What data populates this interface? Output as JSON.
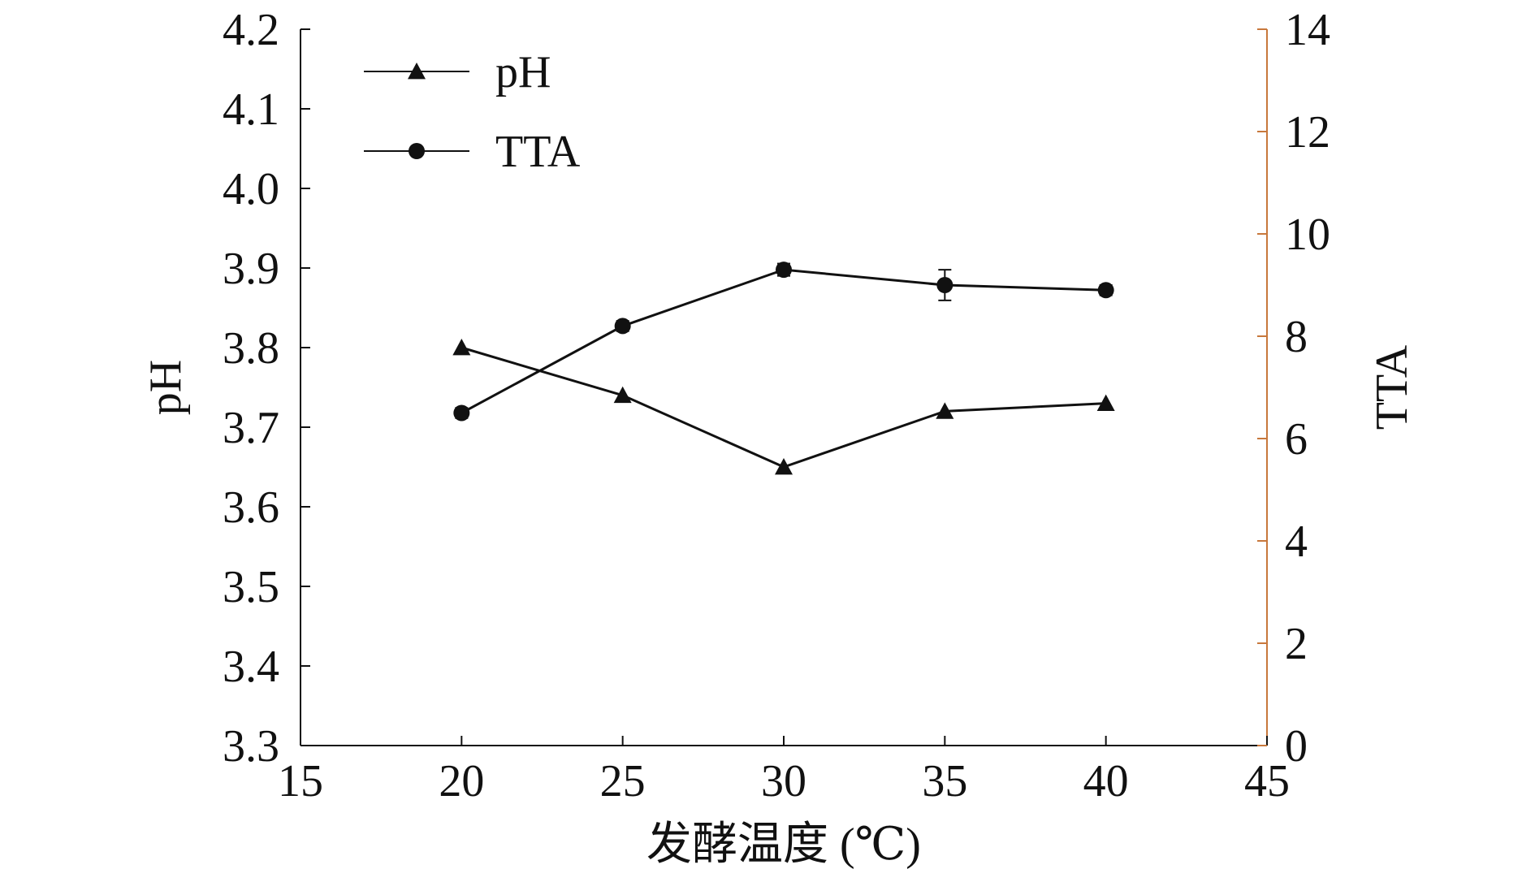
{
  "chart_data": {
    "type": "line",
    "xlabel": "发酵温度 (℃)",
    "ylabel_left": "pH",
    "ylabel_right": "TTA",
    "x_ticks": [
      "15",
      "20",
      "25",
      "30",
      "35",
      "40",
      "45"
    ],
    "y_left_ticks": [
      "3.3",
      "3.4",
      "3.5",
      "3.6",
      "3.7",
      "3.8",
      "3.9",
      "4.0",
      "4.1",
      "4.2"
    ],
    "y_right_ticks": [
      "0",
      "2",
      "4",
      "6",
      "8",
      "10",
      "12",
      "14"
    ],
    "xlim": [
      15,
      45
    ],
    "ylim_left": [
      3.3,
      4.2
    ],
    "ylim_right": [
      0,
      14
    ],
    "grid": false,
    "legend_position": "top-left",
    "series": [
      {
        "name": "pH",
        "axis": "left",
        "marker": "triangle",
        "x": [
          20,
          25,
          30,
          35,
          40
        ],
        "values": [
          3.8,
          3.74,
          3.65,
          3.72,
          3.73
        ]
      },
      {
        "name": "TTA",
        "axis": "right",
        "marker": "circle",
        "x": [
          20,
          25,
          30,
          35,
          40
        ],
        "values": [
          6.5,
          8.2,
          9.3,
          9.0,
          8.9
        ],
        "error": [
          0.1,
          0.1,
          0.12,
          0.3,
          0.1
        ]
      }
    ],
    "colors": {
      "line": "#111111",
      "right_axis": "#c8783c"
    }
  }
}
